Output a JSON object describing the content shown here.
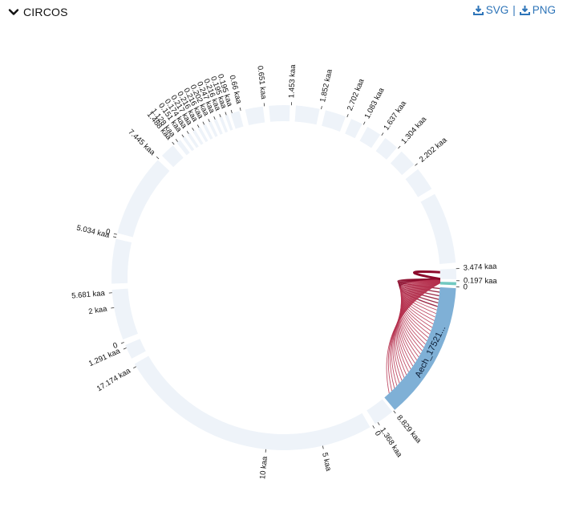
{
  "header": {
    "title": "CIRCOS",
    "download_svg": "SVG",
    "download_png": "PNG",
    "separator": "|",
    "accent_color": "#2d74b8"
  },
  "icons": {
    "toggle": "chevron-down-icon",
    "svg": "download-icon",
    "png": "download-icon"
  },
  "diagram": {
    "type": "circos",
    "ring_color": "#eef3f9",
    "highlight_color": "#7fb0d6",
    "link_color": "#b5304d",
    "link_dark_color": "#8c0a2c",
    "teal_color": "#71c9c1",
    "highlight_segment_label": "Aech_17521...",
    "highlight_end_label": "8.829 kaa",
    "ticks": [
      "3.474 kaa",
      "0.197 kaa",
      "0",
      "8.829 kaa",
      "1.368 kaa",
      "0",
      "5 kaa",
      "10 kaa",
      "17.174 kaa",
      "1.291 kaa",
      "0",
      "2 kaa",
      "5.681 kaa",
      "5.034 kaa",
      "0",
      "7.445 kaa",
      "1.488 kaa",
      "1.128 kaa",
      "0.151 kaa",
      "0.174 kaa",
      "0.217 kaa",
      "0.216 kaa",
      "0.216 kaa",
      "0.202 kaa",
      "0.247 kaa",
      "0.216 kaa",
      "0.195 kaa",
      "0.195 kaa",
      "0.66 kaa",
      "0.651 kaa",
      "1.453 kaa",
      "1.852 kaa",
      "2.702 kaa",
      "1.083 kaa",
      "1.637 kaa",
      "1.304 kaa",
      "2.202 kaa"
    ]
  }
}
